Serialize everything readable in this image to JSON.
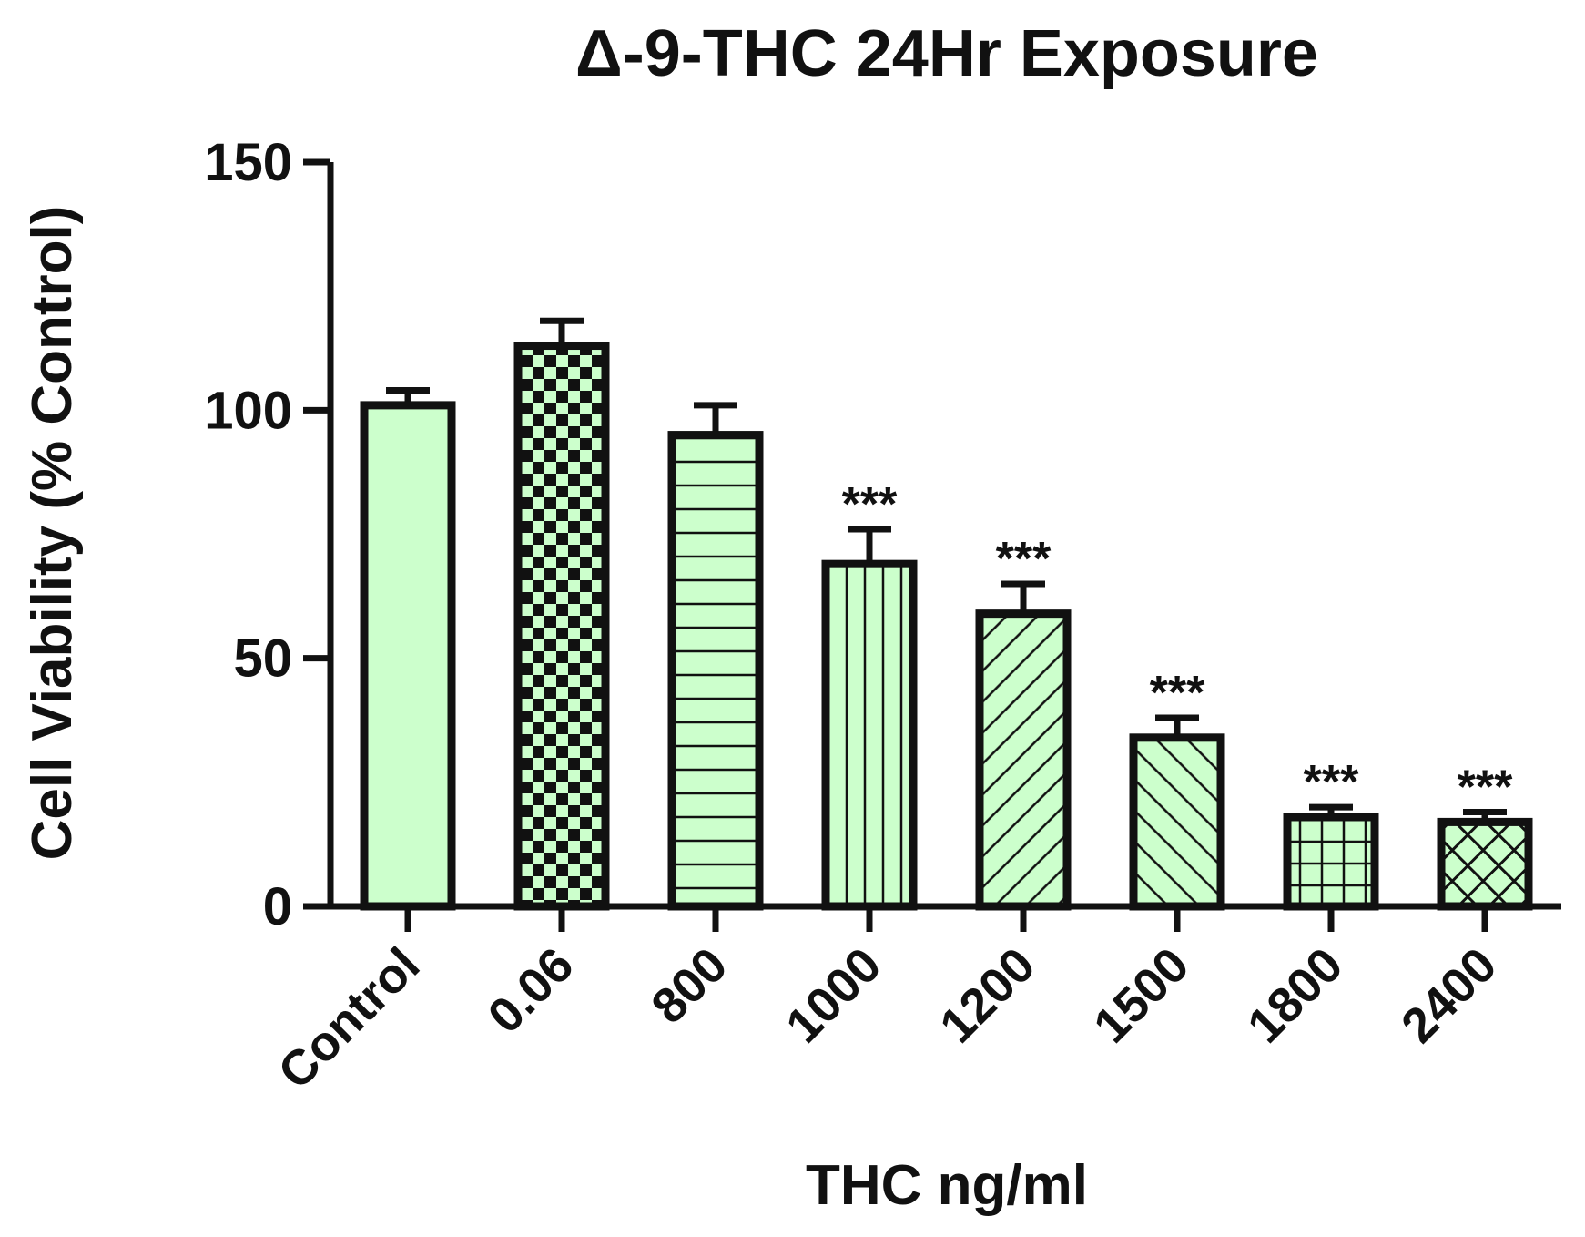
{
  "chart_data": {
    "type": "bar",
    "title": "Δ-9-THC 24Hr Exposure",
    "xlabel": "THC ng/ml",
    "ylabel": "Cell Viability (% Control)",
    "ylim": [
      0,
      150
    ],
    "yticks": [
      "0",
      "50",
      "100",
      "150"
    ],
    "categories": [
      "Control",
      "0.06",
      "800",
      "1000",
      "1200",
      "1500",
      "1800",
      "2400"
    ],
    "values": [
      101,
      113,
      95,
      69,
      59,
      34,
      18,
      17
    ],
    "errors": [
      3,
      5,
      6,
      7,
      6,
      4,
      2,
      2
    ],
    "annotations": [
      "",
      "",
      "",
      "***",
      "***",
      "***",
      "***",
      "***"
    ],
    "patterns": [
      "solid",
      "checker",
      "hlines",
      "vlines",
      "diag-up",
      "diag-down",
      "grid",
      "crosshatch"
    ],
    "grid": false,
    "legend": "none",
    "colors": {
      "bar_fill": "#ccffcc",
      "bar_stroke": "#111111",
      "axis": "#111111"
    }
  }
}
